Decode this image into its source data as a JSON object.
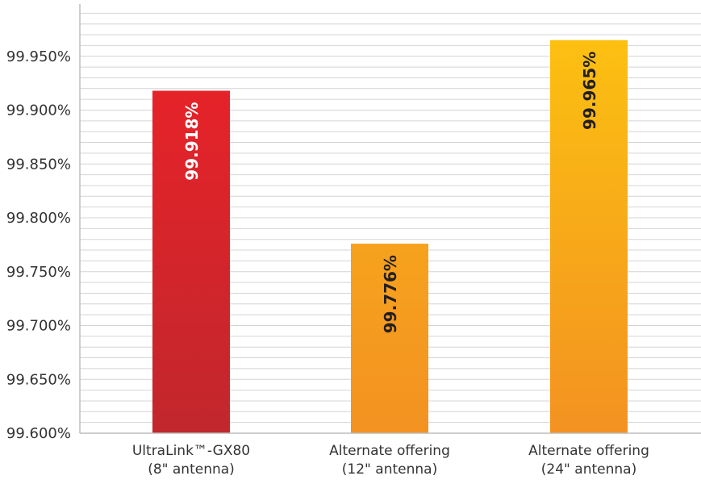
{
  "chart_data": {
    "type": "bar",
    "title": "",
    "xlabel": "",
    "ylabel": "",
    "ylim": [
      99.6,
      100.0
    ],
    "y_major_step": 0.05,
    "y_minor_step": 0.01,
    "grid": true,
    "y_ticks": [
      "99.600%",
      "99.650%",
      "99.700%",
      "99.750%",
      "99.800%",
      "99.850%",
      "99.900%",
      "99.950%"
    ],
    "categories": [
      {
        "line1": "UltraLink™-GX80",
        "line2": "(8\" antenna)"
      },
      {
        "line1": "Alternate offering",
        "line2": "(12\" antenna)"
      },
      {
        "line1": "Alternate offering",
        "line2": "(24\" antenna)"
      }
    ],
    "values": [
      99.918,
      99.776,
      99.965
    ],
    "value_labels": [
      "99.918%",
      "99.776%",
      "99.965%"
    ],
    "colors": [
      {
        "top": "#e52329",
        "bottom": "#c1272d",
        "label": "#ffffff"
      },
      {
        "top": "#f6a21e",
        "bottom": "#f39221",
        "label": "#231f20"
      },
      {
        "top": "#fcc011",
        "bottom": "#f39221",
        "label": "#231f20"
      }
    ],
    "grid_color": "#d4d4d4",
    "axis_color": "#bdbdbd"
  }
}
